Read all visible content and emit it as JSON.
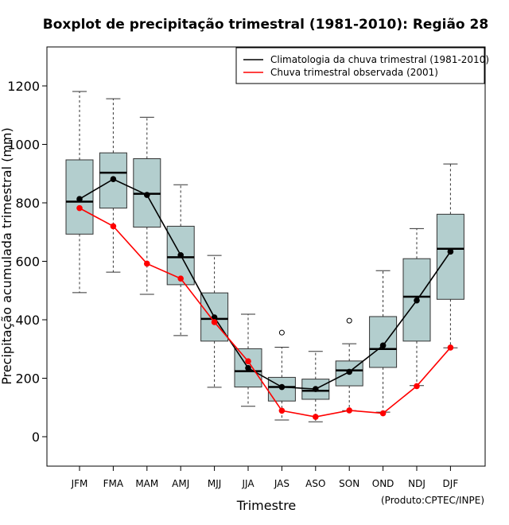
{
  "chart_data": {
    "type": "boxplot",
    "title": "Boxplot de precipitação trimestral (1981-2010): Região 28",
    "xlabel": "Trimestre",
    "ylabel": "Precipitação acumulada trimestral (mm)",
    "ylim": [
      -100,
      1300
    ],
    "yticks": [
      0,
      200,
      400,
      600,
      800,
      1000,
      1200
    ],
    "credit": "(Produto:CPTEC/INPE)",
    "legend_position": "top-right",
    "categories": [
      "JFM",
      "FMA",
      "MAM",
      "AMJ",
      "MJJ",
      "JJA",
      "JAS",
      "ASO",
      "SON",
      "OND",
      "NDJ",
      "DJF"
    ],
    "boxes": [
      {
        "whisker_low": 493,
        "q1": 693,
        "median": 804,
        "q3": 947,
        "whisker_high": 1181,
        "outliers": []
      },
      {
        "whisker_low": 563,
        "q1": 782,
        "median": 903,
        "q3": 971,
        "whisker_high": 1156,
        "outliers": []
      },
      {
        "whisker_low": 487,
        "q1": 717,
        "median": 831,
        "q3": 951,
        "whisker_high": 1093,
        "outliers": []
      },
      {
        "whisker_low": 346,
        "q1": 520,
        "median": 614,
        "q3": 720,
        "whisker_high": 862,
        "outliers": []
      },
      {
        "whisker_low": 169,
        "q1": 327,
        "median": 403,
        "q3": 492,
        "whisker_high": 620,
        "outliers": []
      },
      {
        "whisker_low": 104,
        "q1": 170,
        "median": 224,
        "q3": 301,
        "whisker_high": 419,
        "outliers": []
      },
      {
        "whisker_low": 57,
        "q1": 122,
        "median": 170,
        "q3": 203,
        "whisker_high": 306,
        "outliers": [
          356
        ]
      },
      {
        "whisker_low": 51,
        "q1": 128,
        "median": 157,
        "q3": 197,
        "whisker_high": 292,
        "outliers": []
      },
      {
        "whisker_low": 89,
        "q1": 174,
        "median": 227,
        "q3": 259,
        "whisker_high": 318,
        "outliers": [
          397
        ]
      },
      {
        "whisker_low": 84,
        "q1": 237,
        "median": 300,
        "q3": 411,
        "whisker_high": 568,
        "outliers": []
      },
      {
        "whisker_low": 175,
        "q1": 327,
        "median": 479,
        "q3": 609,
        "whisker_high": 712,
        "outliers": []
      },
      {
        "whisker_low": 304,
        "q1": 470,
        "median": 643,
        "q3": 761,
        "whisker_high": 933,
        "outliers": []
      }
    ],
    "series": [
      {
        "name": "Climatologia da chuva trimestral (1981-2010)",
        "color": "#000000",
        "values": [
          813,
          881,
          827,
          621,
          408,
          235,
          170,
          163,
          222,
          312,
          466,
          633
        ]
      },
      {
        "name": "Chuva trimestral observada (2001)",
        "color": "#ff0000",
        "values": [
          782,
          720,
          592,
          541,
          392,
          258,
          89,
          68,
          90,
          80,
          173,
          305
        ]
      }
    ],
    "colors": {
      "box_fill": "#b3cece",
      "box_stroke": "#333333"
    }
  }
}
